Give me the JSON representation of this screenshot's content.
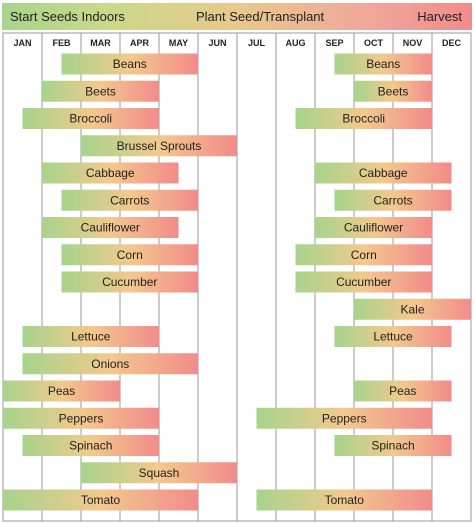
{
  "legend": {
    "start": "Start Seeds Indoors",
    "plant": "Plant Seed/Transplant",
    "harvest": "Harvest"
  },
  "chart_data": {
    "type": "gantt",
    "months": [
      "JAN",
      "FEB",
      "MAR",
      "APR",
      "MAY",
      "JUN",
      "JUL",
      "AUG",
      "SEP",
      "OCT",
      "NOV",
      "DEC"
    ],
    "gradient_colors": {
      "start": "#a6d48c",
      "middle": "#f2c98c",
      "end": "#f28b8b"
    },
    "crops": [
      {
        "name": "Beans",
        "spring": [
          1.5,
          5.0
        ],
        "fall": [
          8.5,
          11.0
        ]
      },
      {
        "name": "Beets",
        "spring": [
          1.0,
          4.0
        ],
        "fall": [
          9.0,
          11.0
        ]
      },
      {
        "name": "Broccoli",
        "spring": [
          0.5,
          4.0
        ],
        "fall": [
          7.5,
          11.0
        ]
      },
      {
        "name": "Brussel Sprouts",
        "spring": [
          2.0,
          6.0
        ],
        "fall": null
      },
      {
        "name": "Cabbage",
        "spring": [
          1.0,
          4.5
        ],
        "fall": [
          8.0,
          11.5
        ]
      },
      {
        "name": "Carrots",
        "spring": [
          1.5,
          5.0
        ],
        "fall": [
          8.5,
          11.5
        ]
      },
      {
        "name": "Cauliflower",
        "spring": [
          1.0,
          4.5
        ],
        "fall": [
          8.0,
          11.0
        ]
      },
      {
        "name": "Corn",
        "spring": [
          1.5,
          5.0
        ],
        "fall": [
          7.5,
          11.0
        ]
      },
      {
        "name": "Cucumber",
        "spring": [
          1.5,
          5.0
        ],
        "fall": [
          7.5,
          11.0
        ]
      },
      {
        "name": "Kale",
        "spring": null,
        "fall": [
          9.0,
          12.0
        ]
      },
      {
        "name": "Lettuce",
        "spring": [
          0.5,
          4.0
        ],
        "fall": [
          8.5,
          11.5
        ]
      },
      {
        "name": "Onions",
        "spring": [
          0.5,
          5.0
        ],
        "fall": null
      },
      {
        "name": "Peas",
        "spring": [
          0.0,
          3.0
        ],
        "fall": [
          9.0,
          11.5
        ]
      },
      {
        "name": "Peppers",
        "spring": [
          0.0,
          4.0
        ],
        "fall": [
          6.5,
          11.0
        ]
      },
      {
        "name": "Spinach",
        "spring": [
          0.5,
          4.0
        ],
        "fall": [
          8.5,
          11.5
        ]
      },
      {
        "name": "Squash",
        "spring": [
          2.0,
          6.0
        ],
        "fall": null
      },
      {
        "name": "Tomato",
        "spring": [
          0.0,
          5.0
        ],
        "fall": [
          6.5,
          11.0
        ]
      }
    ]
  }
}
